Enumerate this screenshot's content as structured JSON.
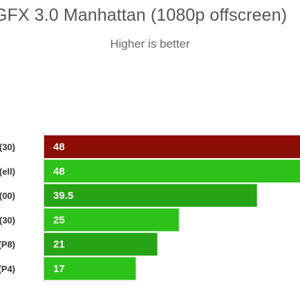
{
  "chart_data": {
    "type": "bar",
    "orientation": "horizontal",
    "title": "GFX 3.0 Manhattan (1080p offscreen)",
    "subtitle": "Higher is better",
    "categories": [
      "(30)",
      "(ell)",
      "(00)",
      "(30)",
      "(P8)",
      "(P4)"
    ],
    "values": [
      48,
      48,
      39.5,
      25,
      21,
      17
    ],
    "value_labels": [
      "48",
      "48",
      "39.5",
      "25",
      "21",
      "17"
    ],
    "colors": [
      "#8b0d04",
      "#2cc21a",
      "#27a416",
      "#2cc21a",
      "#27a416",
      "#2cc21a"
    ],
    "xlim": [
      0,
      47.5
    ],
    "grid": false,
    "legend": "none"
  }
}
